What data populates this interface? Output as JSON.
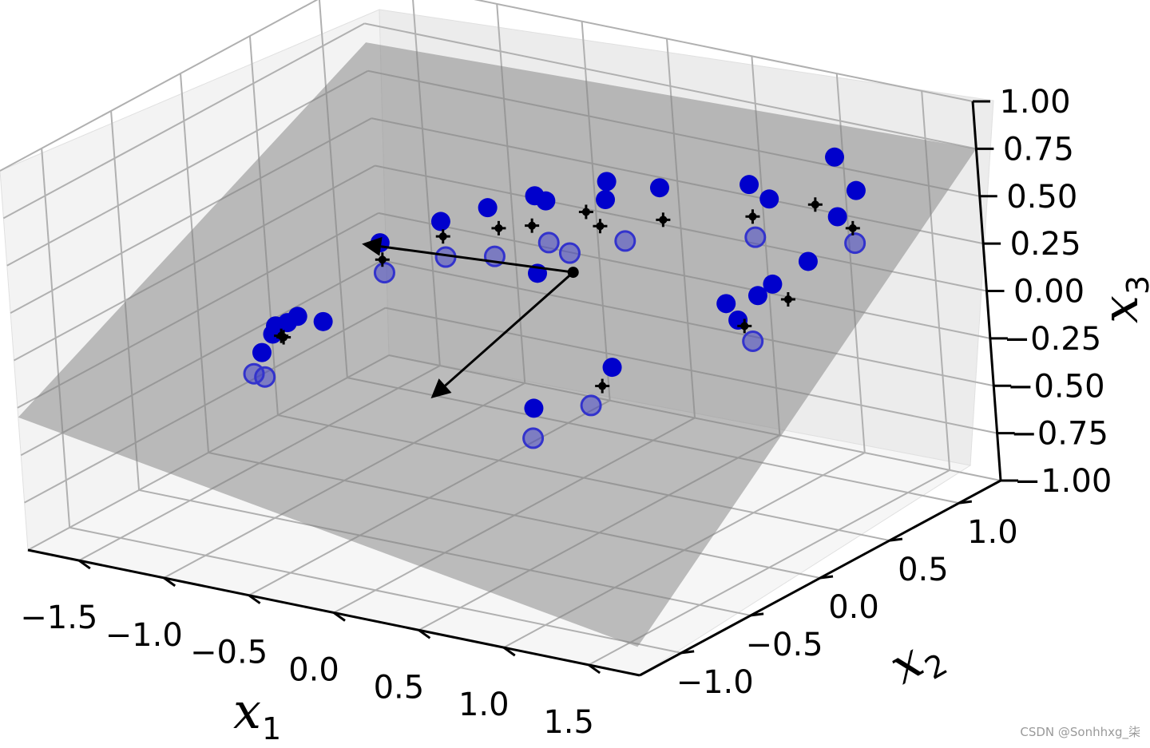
{
  "chart_data": {
    "type": "scatter",
    "projection": "3d",
    "title": "",
    "axes": {
      "x": {
        "label": "x",
        "subscript": "1",
        "lim": [
          -1.8,
          1.8
        ],
        "ticks": [
          -1.5,
          -1.0,
          -0.5,
          0.0,
          0.5,
          1.0,
          1.5
        ],
        "tick_labels": [
          "−1.5",
          "−1.0",
          "−0.5",
          "0.0",
          "0.5",
          "1.0",
          "1.5"
        ]
      },
      "y": {
        "label": "x",
        "subscript": "2",
        "lim": [
          -1.3,
          1.3
        ],
        "ticks": [
          -1.0,
          -0.5,
          0.0,
          0.5,
          1.0
        ],
        "tick_labels": [
          "−1.0",
          "−0.5",
          "0.0",
          "0.5",
          "1.0"
        ]
      },
      "z": {
        "label": "x",
        "subscript": "3",
        "lim": [
          -1.0,
          1.0
        ],
        "ticks": [
          -1.0,
          -0.75,
          -0.5,
          -0.25,
          0.0,
          0.25,
          0.5,
          0.75,
          1.0
        ],
        "tick_labels": [
          "−1.00",
          "−0.75",
          "−0.50",
          "−0.25",
          "0.00",
          "0.25",
          "0.50",
          "0.75",
          "1.00"
        ]
      }
    },
    "grid": true,
    "plane": {
      "color": "#808080",
      "corners": [
        [
          -1.8,
          -1.3,
          -0.3
        ],
        [
          1.8,
          -1.3,
          -0.85
        ],
        [
          1.8,
          1.3,
          0.75
        ],
        [
          -1.8,
          1.3,
          0.65
        ]
      ]
    },
    "vectors": {
      "origin": [
        0.2,
        0.3,
        0.2
      ],
      "tips": [
        [
          -1.05,
          0.3,
          0.12
        ],
        [
          0.2,
          -0.75,
          -0.05
        ]
      ],
      "color": "#000000"
    },
    "series": [
      {
        "marker": "filled-circle",
        "color": "#0000cc",
        "points": [
          [
            -1.2,
            0.6,
            -0.02
          ],
          [
            -1.0,
            0.8,
            0.05
          ],
          [
            -0.8,
            0.9,
            0.12
          ],
          [
            -0.6,
            1.0,
            0.18
          ],
          [
            -0.45,
            0.9,
            0.22
          ],
          [
            -0.25,
            1.1,
            0.28
          ],
          [
            -0.05,
            0.85,
            0.32
          ],
          [
            0.15,
            1.0,
            0.36
          ],
          [
            -0.1,
            0.4,
            0.1
          ],
          [
            0.6,
            1.1,
            0.42
          ],
          [
            0.95,
            1.3,
            0.55
          ],
          [
            0.8,
            1.0,
            0.42
          ],
          [
            1.15,
            1.2,
            0.45
          ],
          [
            1.2,
            1.0,
            0.4
          ],
          [
            1.35,
            0.6,
            0.35
          ],
          [
            1.3,
            0.4,
            0.3
          ],
          [
            1.25,
            0.35,
            0.25
          ],
          [
            1.1,
            0.3,
            0.2
          ],
          [
            1.25,
            0.2,
            0.18
          ],
          [
            -1.25,
            0.05,
            -0.2
          ],
          [
            -1.3,
            -0.05,
            -0.22
          ],
          [
            -1.45,
            0.1,
            -0.35
          ],
          [
            -1.35,
            -0.1,
            -0.35
          ],
          [
            -1.4,
            0.15,
            -0.3
          ],
          [
            -1.1,
            0.05,
            -0.2
          ],
          [
            0.65,
            0.0,
            -0.1
          ],
          [
            0.25,
            -0.1,
            -0.35
          ]
        ]
      },
      {
        "marker": "hollow-circle",
        "color": "#3333cc",
        "points": [
          [
            -1.1,
            0.5,
            -0.12
          ],
          [
            -0.9,
            0.7,
            -0.08
          ],
          [
            -0.65,
            0.75,
            -0.05
          ],
          [
            -0.45,
            0.9,
            0.0
          ],
          [
            -0.2,
            0.75,
            0.05
          ],
          [
            0.05,
            0.85,
            0.12
          ],
          [
            0.7,
            1.0,
            0.2
          ],
          [
            1.25,
            1.05,
            0.25
          ],
          [
            1.2,
            0.35,
            0.0
          ],
          [
            -1.3,
            -0.15,
            -0.45
          ],
          [
            -1.45,
            -0.05,
            -0.5
          ],
          [
            0.55,
            -0.05,
            -0.3
          ],
          [
            0.25,
            -0.12,
            -0.5
          ]
        ]
      },
      {
        "marker": "plus-projection",
        "color": "#000000",
        "points": [
          [
            -1.15,
            0.55,
            -0.08
          ],
          [
            -0.95,
            0.75,
            0.0
          ],
          [
            -0.7,
            0.85,
            0.05
          ],
          [
            -0.5,
            0.85,
            0.1
          ],
          [
            -0.3,
            1.0,
            0.15
          ],
          [
            -0.05,
            0.8,
            0.2
          ],
          [
            0.2,
            0.95,
            0.22
          ],
          [
            0.65,
            1.05,
            0.28
          ],
          [
            0.9,
            1.2,
            0.33
          ],
          [
            1.2,
            1.1,
            0.3
          ],
          [
            1.3,
            0.5,
            0.18
          ],
          [
            1.2,
            0.3,
            0.1
          ],
          [
            -1.3,
            0.0,
            -0.3
          ],
          [
            -1.4,
            0.1,
            -0.35
          ],
          [
            0.6,
            -0.02,
            -0.2
          ]
        ]
      }
    ]
  },
  "watermark": "CSDN @Sonhhxg_柒"
}
